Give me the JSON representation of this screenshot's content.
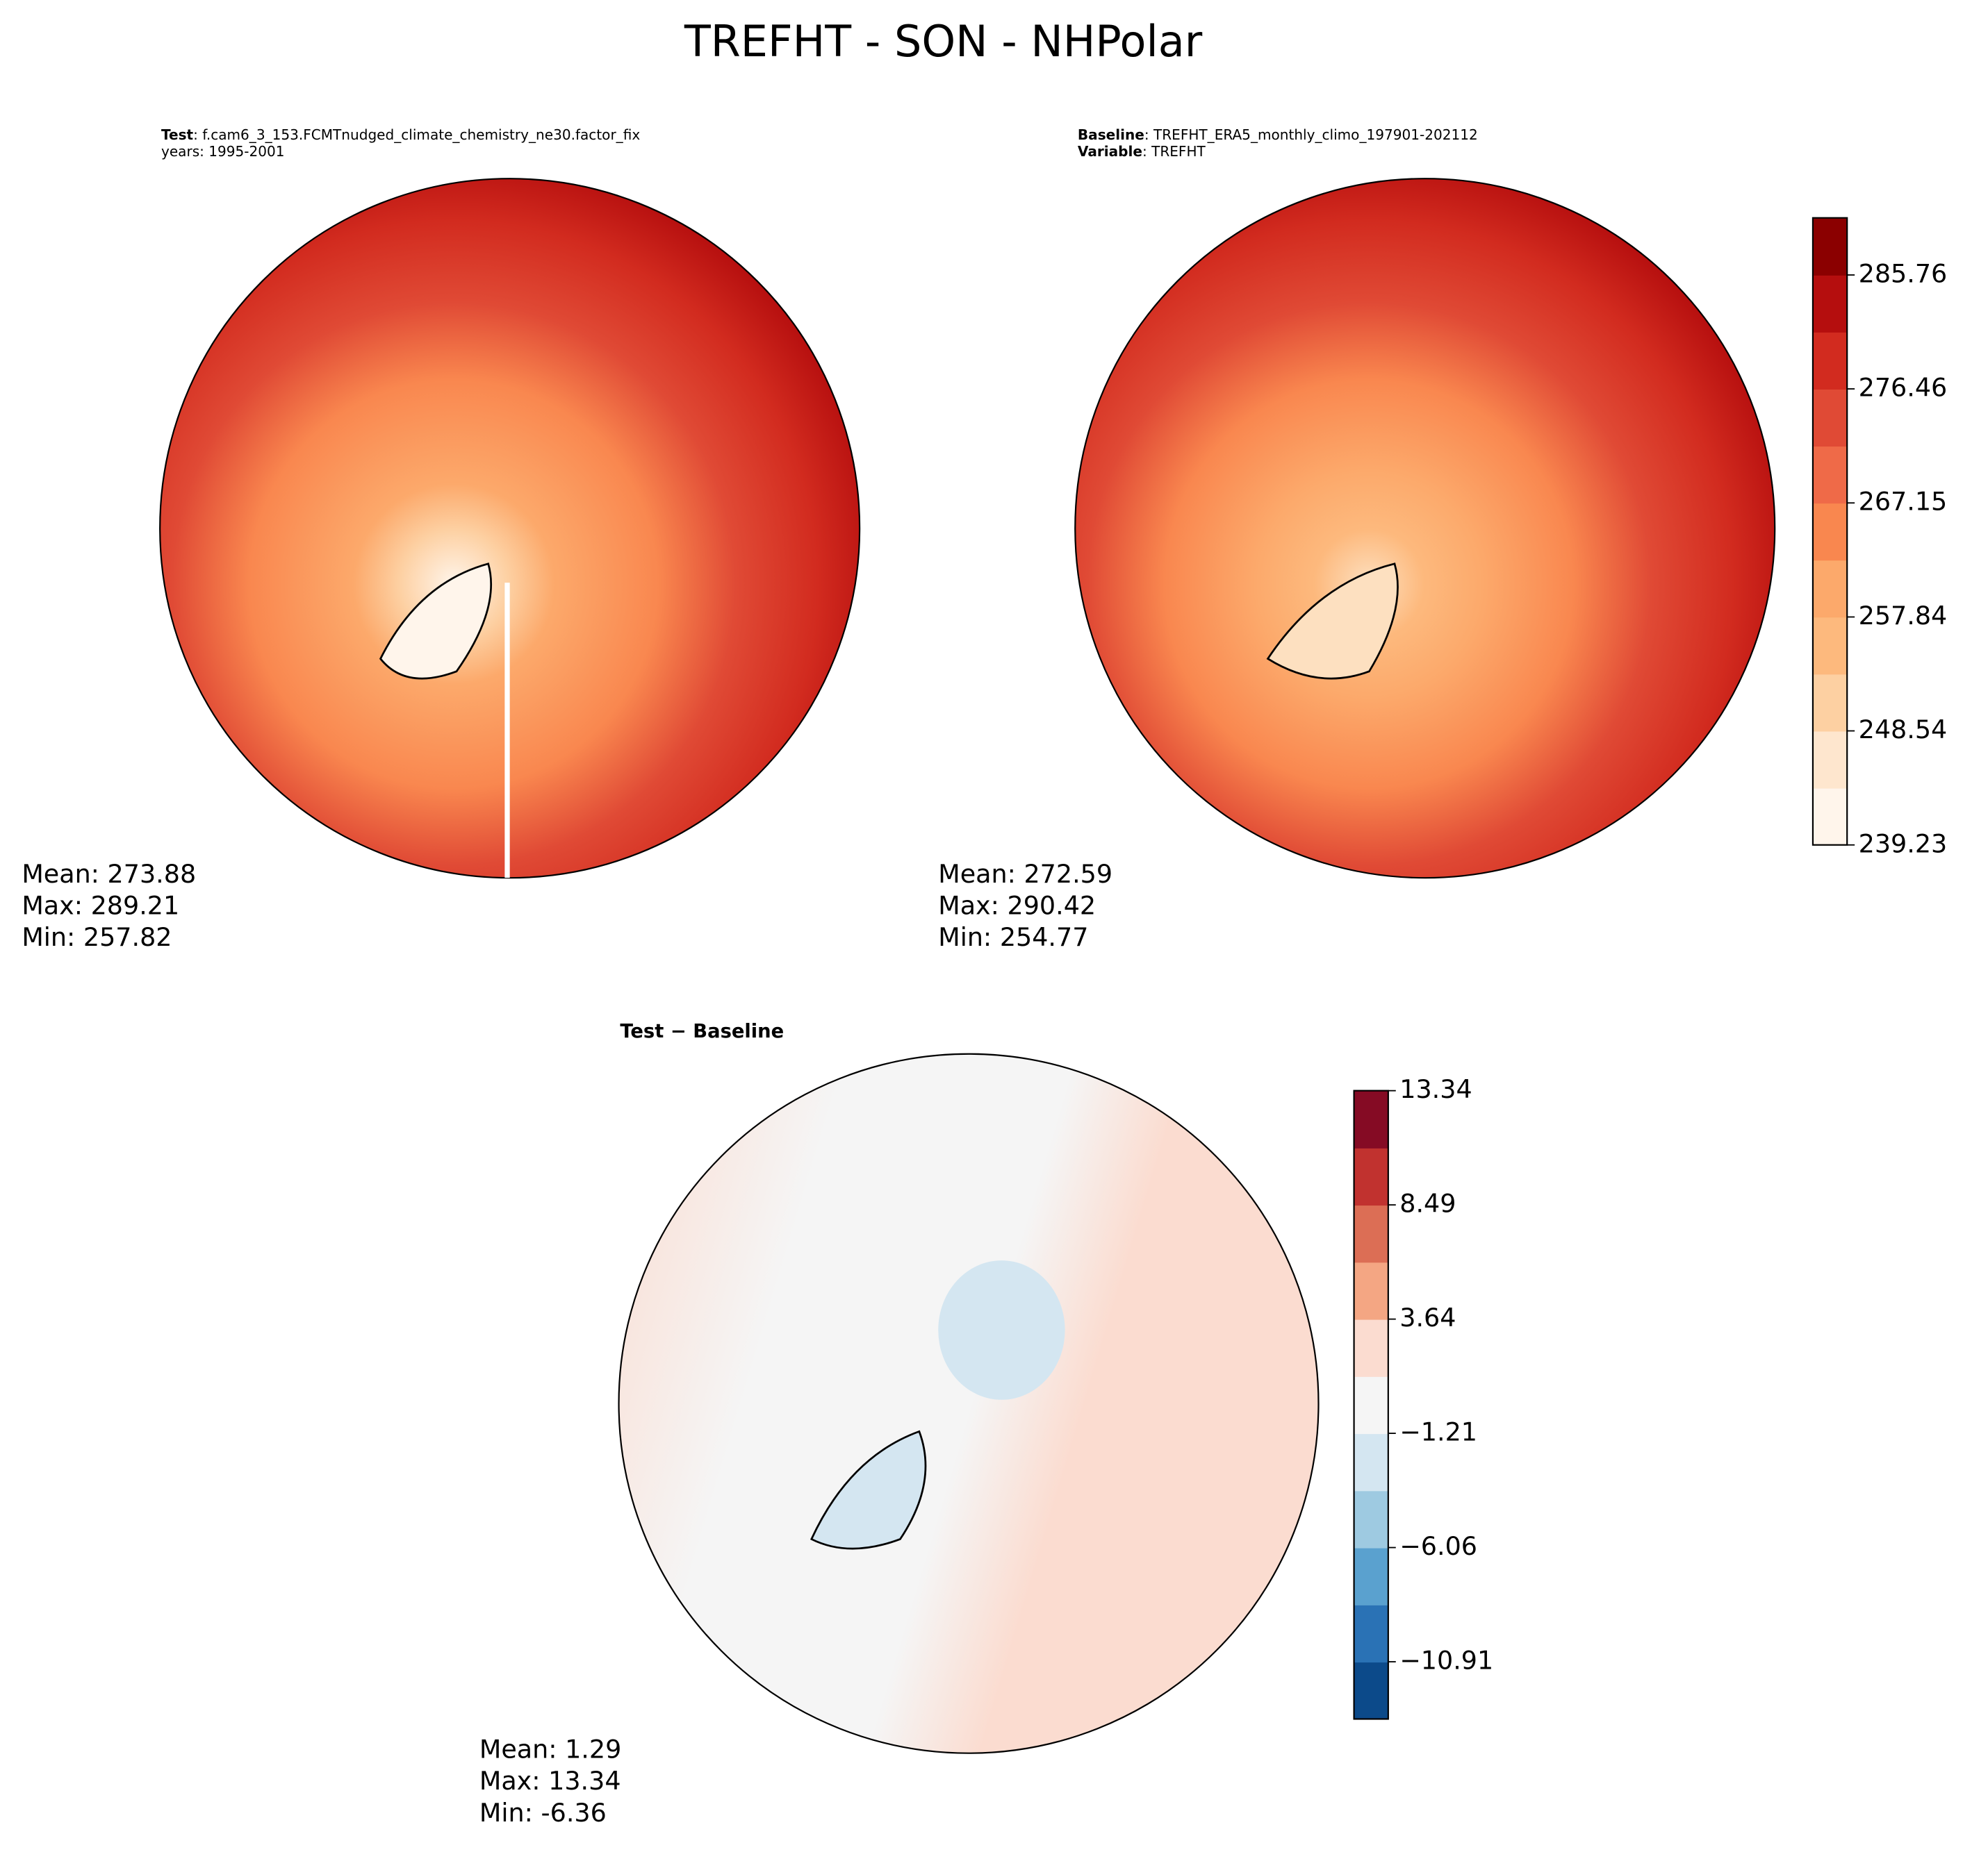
{
  "title": "TREFHT - SON - NHPolar",
  "panels": [
    {
      "header": [
        {
          "key": "Test",
          "value": ": f.cam6_3_153.FCMTnudged_climate_chemistry_ne30.factor_fix"
        },
        {
          "text": "years: 1995-2001"
        }
      ],
      "stats": [
        "Mean: 273.88",
        "Max: 289.21",
        "Min: 257.82"
      ]
    },
    {
      "header": [
        {
          "key": "Baseline",
          "value": ": TREFHT_ERA5_monthly_climo_197901-202112"
        },
        {
          "key": "Variable",
          "value": ": TREFHT"
        }
      ],
      "stats": [
        "Mean: 272.59",
        "Max: 290.42",
        "Min: 254.77"
      ]
    },
    {
      "title": "Test − Baseline",
      "stats": [
        "Mean:  1.29",
        "Max: 13.34",
        "Min: -6.36"
      ]
    }
  ],
  "colorbars": [
    {
      "colors": [
        "#fff5eb",
        "#fee6ce",
        "#fdd0a2",
        "#fdb97d",
        "#fca96b",
        "#f9874f",
        "#ef6a48",
        "#e04a35",
        "#d22b1f",
        "#b50e0e",
        "#8b0000"
      ],
      "ylim": [
        239.23,
        290.42
      ],
      "yticks": [
        239.23,
        248.54,
        257.84,
        267.15,
        276.46,
        285.76
      ]
    },
    {
      "colors": [
        "#0c4a8a",
        "#2a72b5",
        "#5aa1cf",
        "#9ecae1",
        "#d4e6f1",
        "#f5f5f5",
        "#fbdcd0",
        "#f4a683",
        "#dc6e55",
        "#c1322f",
        "#850b24"
      ],
      "ylim": [
        -13.34,
        13.34
      ],
      "yticks": [
        {
          "value": -10.91,
          "label": "−10.91"
        },
        {
          "value": -6.06,
          "label": "−6.06"
        },
        {
          "value": -1.21,
          "label": "−1.21"
        },
        3.64,
        8.49,
        13.34
      ]
    }
  ]
}
